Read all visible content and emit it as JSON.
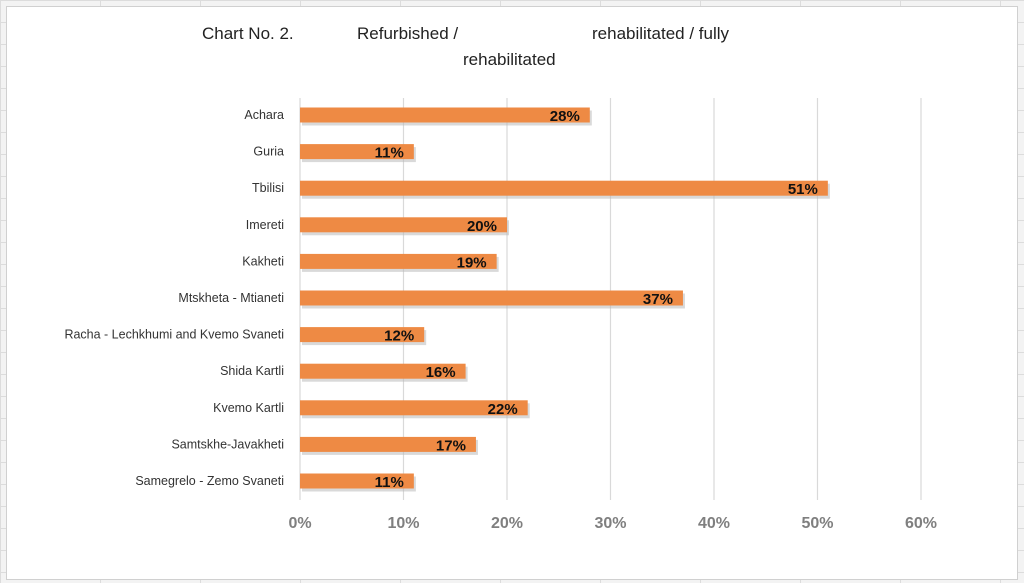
{
  "title": {
    "part1": "Chart No. 2.",
    "part2": "Refurbished /",
    "part3": "rehabilitated / fully",
    "part4": "rehabilitated"
  },
  "colors": {
    "bar": "#ee8a44",
    "bar_shadow": "#b9b9b9",
    "gridline": "#d9d9d9",
    "tick_label": "#7f7f7f",
    "category_label": "#333333"
  },
  "chart_data": {
    "type": "bar",
    "orientation": "horizontal",
    "categories": [
      "Achara",
      "Guria",
      "Tbilisi",
      "Imereti",
      "Kakheti",
      "Mtskheta - Mtianeti",
      "Racha - Lechkhumi and Kvemo Svaneti",
      "Shida Kartli",
      "Kvemo Kartli",
      "Samtskhe-Javakheti",
      "Samegrelo - Zemo Svaneti"
    ],
    "values": [
      28,
      11,
      51,
      20,
      19,
      37,
      12,
      16,
      22,
      17,
      11
    ],
    "data_labels": [
      "28%",
      "11%",
      "51%",
      "20%",
      "19%",
      "37%",
      "12%",
      "16%",
      "22%",
      "17%",
      "11%"
    ],
    "xlim": [
      0,
      60
    ],
    "xticks": [
      0,
      10,
      20,
      30,
      40,
      50,
      60
    ],
    "xtick_labels": [
      "0%",
      "10%",
      "20%",
      "30%",
      "40%",
      "50%",
      "60%"
    ],
    "grid": "vertical",
    "legend": "none"
  }
}
